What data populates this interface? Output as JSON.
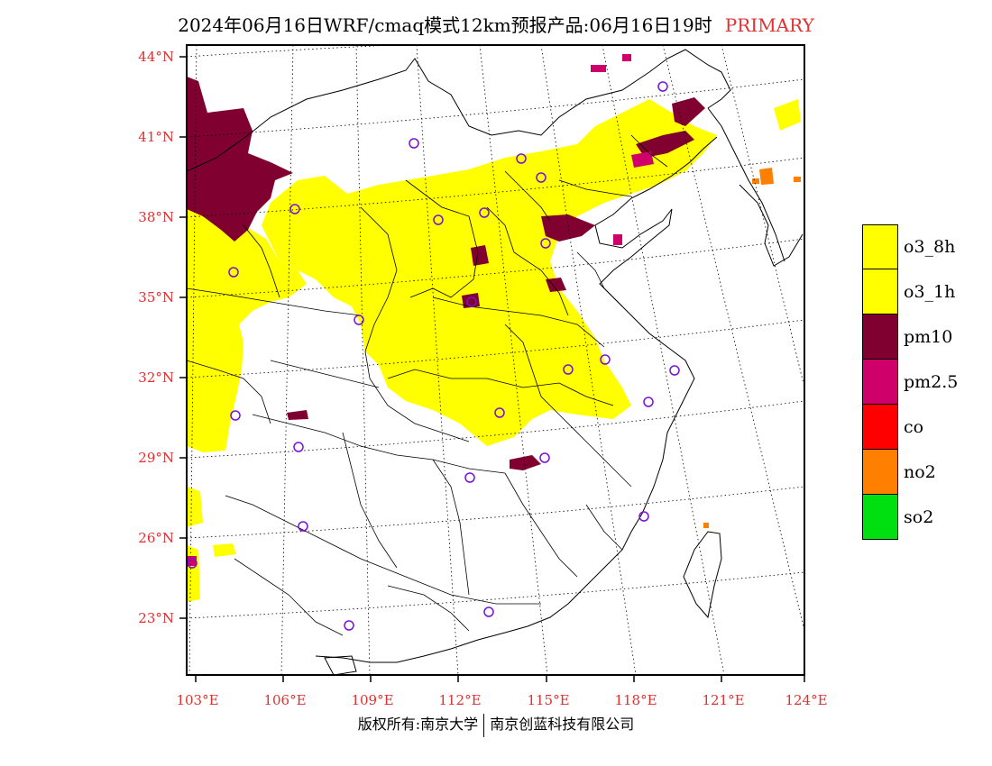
{
  "title": {
    "main": "2024年06月16日WRF/cmaq模式12km预报产品:06月16日19时",
    "product": "PRIMARY"
  },
  "map": {
    "lat_labels": [
      "44°N",
      "41°N",
      "38°N",
      "35°N",
      "32°N",
      "29°N",
      "26°N",
      "23°N"
    ],
    "lon_labels": [
      "103°E",
      "106°E",
      "109°E",
      "112°E",
      "115°E",
      "118°E",
      "121°E",
      "124°E"
    ]
  },
  "legend": [
    {
      "label": "o3_8h",
      "color": "#ffff00"
    },
    {
      "label": "o3_1h",
      "color": "#ffff00"
    },
    {
      "label": "pm10",
      "color": "#800030"
    },
    {
      "label": "pm2.5",
      "color": "#d0006a"
    },
    {
      "label": "co",
      "color": "#ff0000"
    },
    {
      "label": "no2",
      "color": "#ff8000"
    },
    {
      "label": "so2",
      "color": "#00e010"
    }
  ],
  "colors": {
    "o3": "#ffff00",
    "pm10": "#800030",
    "pm25": "#d0006a",
    "no2": "#ff8000",
    "station_marker": "#7a10d8",
    "axis_text": "#e03030"
  },
  "footer": {
    "left": "版权所有:南京大学",
    "right": "南京创蓝科技有限公司"
  }
}
